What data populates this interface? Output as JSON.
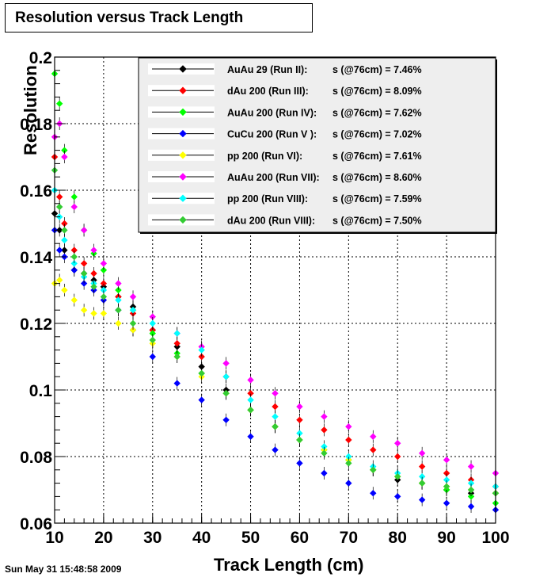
{
  "title": "Resolution versus Track Length",
  "timestamp": "Sun May 31 15:48:58 2009",
  "chart_data": {
    "type": "scatter",
    "title": "Resolution versus Track Length",
    "xlabel": "Track Length (cm)",
    "ylabel": "Resolution",
    "xlim": [
      10,
      100
    ],
    "ylim": [
      0.06,
      0.2
    ],
    "xticks": [
      "10",
      "20",
      "30",
      "40",
      "50",
      "60",
      "70",
      "80",
      "90",
      "100"
    ],
    "yticks": [
      "0.06",
      "0.08",
      "0.1",
      "0.12",
      "0.14",
      "0.16",
      "0.18",
      "0.2"
    ],
    "grid": true,
    "legend_position": "top-right",
    "series": [
      {
        "name": "AuAu 29 (Run II):",
        "stat": "s (@76cm) =  7.46%",
        "color": "#000000",
        "x": [
          10,
          11,
          12,
          14,
          16,
          18,
          20,
          23,
          26,
          30,
          35,
          40,
          45,
          50,
          55,
          60,
          65,
          70,
          75,
          80,
          85,
          90,
          95,
          100
        ],
        "y": [
          0.153,
          0.148,
          0.142,
          0.136,
          0.135,
          0.133,
          0.131,
          0.128,
          0.125,
          0.118,
          0.113,
          0.107,
          0.1,
          0.094,
          0.089,
          0.085,
          0.082,
          0.079,
          0.076,
          0.073,
          0.072,
          0.07,
          0.069,
          0.069
        ]
      },
      {
        "name": "dAu 200 (Run III):",
        "stat": "s (@76cm) =  8.09%",
        "color": "#ff0000",
        "x": [
          10,
          11,
          12,
          14,
          16,
          18,
          20,
          23,
          26,
          30,
          35,
          40,
          45,
          50,
          55,
          60,
          65,
          70,
          75,
          80,
          85,
          90,
          95,
          100
        ],
        "y": [
          0.17,
          0.158,
          0.15,
          0.142,
          0.138,
          0.135,
          0.132,
          0.128,
          0.123,
          0.118,
          0.114,
          0.11,
          0.104,
          0.099,
          0.095,
          0.091,
          0.088,
          0.085,
          0.082,
          0.08,
          0.077,
          0.075,
          0.073,
          0.071
        ]
      },
      {
        "name": "AuAu 200 (Run IV):",
        "stat": "s (@76cm) =  7.62%",
        "color": "#00ff00",
        "x": [
          10,
          11,
          12,
          14,
          16,
          18,
          20,
          23,
          26,
          30,
          35,
          40,
          45,
          50,
          55,
          60,
          65,
          70,
          75,
          80,
          85,
          90,
          95,
          100
        ],
        "y": [
          0.195,
          0.186,
          0.172,
          0.158,
          0.148,
          0.141,
          0.136,
          0.13,
          0.124,
          0.117,
          0.111,
          0.105,
          0.099,
          0.094,
          0.089,
          0.085,
          0.082,
          0.079,
          0.076,
          0.074,
          0.072,
          0.07,
          0.068,
          0.066
        ]
      },
      {
        "name": "CuCu 200 (Run V ):",
        "stat": "s (@76cm) =  7.02%",
        "color": "#0000ff",
        "x": [
          10,
          11,
          12,
          14,
          16,
          18,
          20,
          23,
          26,
          30,
          35,
          40,
          45,
          50,
          55,
          60,
          65,
          70,
          75,
          80,
          85,
          90,
          95,
          100
        ],
        "y": [
          0.148,
          0.142,
          0.14,
          0.136,
          0.132,
          0.13,
          0.127,
          0.124,
          0.118,
          0.11,
          0.102,
          0.097,
          0.091,
          0.086,
          0.082,
          0.078,
          0.075,
          0.072,
          0.069,
          0.068,
          0.067,
          0.066,
          0.065,
          0.064
        ]
      },
      {
        "name": "pp 200   (Run VI):",
        "stat": "s (@76cm) =  7.61%",
        "color": "#ffff00",
        "x": [
          10,
          11,
          12,
          14,
          16,
          18,
          20,
          23,
          26,
          30,
          35,
          40,
          45,
          50,
          55,
          60,
          65,
          70,
          75,
          80,
          85,
          90,
          95,
          100
        ],
        "y": [
          0.132,
          0.133,
          0.13,
          0.127,
          0.124,
          0.123,
          0.123,
          0.12,
          0.118,
          0.114,
          0.11,
          0.104,
          0.099,
          0.094,
          0.089,
          0.085,
          0.082,
          0.079,
          0.076,
          0.074,
          0.072,
          0.071,
          0.07,
          0.069
        ]
      },
      {
        "name": "AuAu 200 (Run VII):",
        "stat": "s (@76cm) =  8.60%",
        "color": "#ff00ff",
        "x": [
          10,
          11,
          12,
          14,
          16,
          18,
          20,
          23,
          26,
          30,
          35,
          40,
          45,
          50,
          55,
          60,
          65,
          70,
          75,
          80,
          85,
          90,
          95,
          100
        ],
        "y": [
          0.176,
          0.18,
          0.17,
          0.155,
          0.148,
          0.142,
          0.138,
          0.132,
          0.128,
          0.122,
          0.117,
          0.113,
          0.108,
          0.103,
          0.099,
          0.095,
          0.092,
          0.089,
          0.086,
          0.084,
          0.081,
          0.079,
          0.077,
          0.075
        ]
      },
      {
        "name": "pp 200 (Run VIII):",
        "stat": "s (@76cm) =  7.59%",
        "color": "#00ffff",
        "x": [
          10,
          11,
          12,
          14,
          16,
          18,
          20,
          23,
          26,
          30,
          35,
          40,
          45,
          50,
          55,
          60,
          65,
          70,
          75,
          80,
          85,
          90,
          95,
          100
        ],
        "y": [
          0.16,
          0.152,
          0.145,
          0.138,
          0.134,
          0.132,
          0.13,
          0.127,
          0.124,
          0.12,
          0.117,
          0.112,
          0.104,
          0.097,
          0.092,
          0.087,
          0.083,
          0.08,
          0.077,
          0.075,
          0.074,
          0.073,
          0.072,
          0.071
        ]
      },
      {
        "name": "dAu 200 (Run VIII):",
        "stat": "s (@76cm) =  7.50%",
        "color": "#33cc33",
        "x": [
          10,
          11,
          12,
          14,
          16,
          18,
          20,
          23,
          26,
          30,
          35,
          40,
          45,
          50,
          55,
          60,
          65,
          70,
          75,
          80,
          85,
          90,
          95,
          100
        ],
        "y": [
          0.166,
          0.155,
          0.148,
          0.14,
          0.135,
          0.131,
          0.128,
          0.124,
          0.12,
          0.115,
          0.11,
          0.105,
          0.099,
          0.094,
          0.089,
          0.085,
          0.081,
          0.078,
          0.076,
          0.074,
          0.072,
          0.071,
          0.07,
          0.069
        ]
      }
    ]
  }
}
